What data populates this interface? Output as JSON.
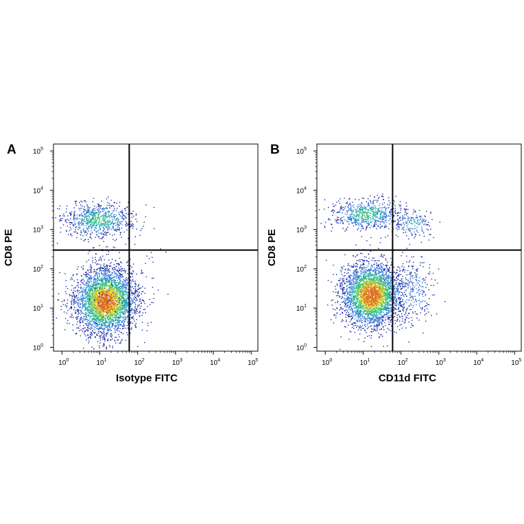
{
  "chart_data": [
    {
      "type": "scatter",
      "panel_label": "A",
      "title": "",
      "xlabel": "Isotype FITC",
      "ylabel": "CD8 PE",
      "xscale": "log",
      "yscale": "log",
      "xlim": [
        0.6,
        150000
      ],
      "ylim": [
        0.8,
        150000
      ],
      "xticks": [
        1,
        10,
        100,
        1000,
        10000,
        100000
      ],
      "yticks": [
        1,
        10,
        100,
        1000,
        10000,
        100000
      ],
      "tick_base": "10",
      "tick_exponents": [
        "0",
        "1",
        "2",
        "3",
        "4",
        "5"
      ],
      "gates": {
        "x": 60,
        "y": 300
      },
      "colormap": [
        "#1020a0",
        "#2e6fd6",
        "#23a3b0",
        "#3cc26a",
        "#d8d020",
        "#e06b1a"
      ],
      "populations": [
        {
          "description": "CD8+ cluster",
          "cx": 9,
          "cy": 1800,
          "sx": 0.45,
          "sy": 0.22,
          "n": 800,
          "peak": 0.55
        },
        {
          "description": "CD8- cluster",
          "cx": 14,
          "cy": 15,
          "sx": 0.4,
          "sy": 0.42,
          "n": 3600,
          "peak": 1.0
        },
        {
          "description": "sparse events",
          "cx": 25,
          "cy": 60,
          "sx": 0.5,
          "sy": 0.8,
          "n": 150,
          "peak": 0.2
        }
      ]
    },
    {
      "type": "scatter",
      "panel_label": "B",
      "title": "",
      "xlabel": "CD11d FITC",
      "ylabel": "CD8 PE",
      "xscale": "log",
      "yscale": "log",
      "xlim": [
        0.6,
        150000
      ],
      "ylim": [
        0.8,
        150000
      ],
      "xticks": [
        1,
        10,
        100,
        1000,
        10000,
        100000
      ],
      "yticks": [
        1,
        10,
        100,
        1000,
        10000,
        100000
      ],
      "tick_base": "10",
      "tick_exponents": [
        "0",
        "1",
        "2",
        "3",
        "4",
        "5"
      ],
      "gates": {
        "x": 60,
        "y": 300
      },
      "colormap": [
        "#1020a0",
        "#2e6fd6",
        "#23a3b0",
        "#3cc26a",
        "#d8d020",
        "#e06b1a"
      ],
      "populations": [
        {
          "description": "CD8+ CD11d- cluster",
          "cx": 12,
          "cy": 2500,
          "sx": 0.45,
          "sy": 0.2,
          "n": 700,
          "peak": 0.55
        },
        {
          "description": "CD8+ CD11d+ cluster",
          "cx": 200,
          "cy": 1400,
          "sx": 0.25,
          "sy": 0.18,
          "n": 180,
          "peak": 0.45
        },
        {
          "description": "CD8- cluster",
          "cx": 16,
          "cy": 22,
          "sx": 0.38,
          "sy": 0.4,
          "n": 3400,
          "peak": 1.0
        },
        {
          "description": "CD8- CD11d+ tail",
          "cx": 200,
          "cy": 25,
          "sx": 0.3,
          "sy": 0.45,
          "n": 300,
          "peak": 0.3
        }
      ]
    }
  ]
}
